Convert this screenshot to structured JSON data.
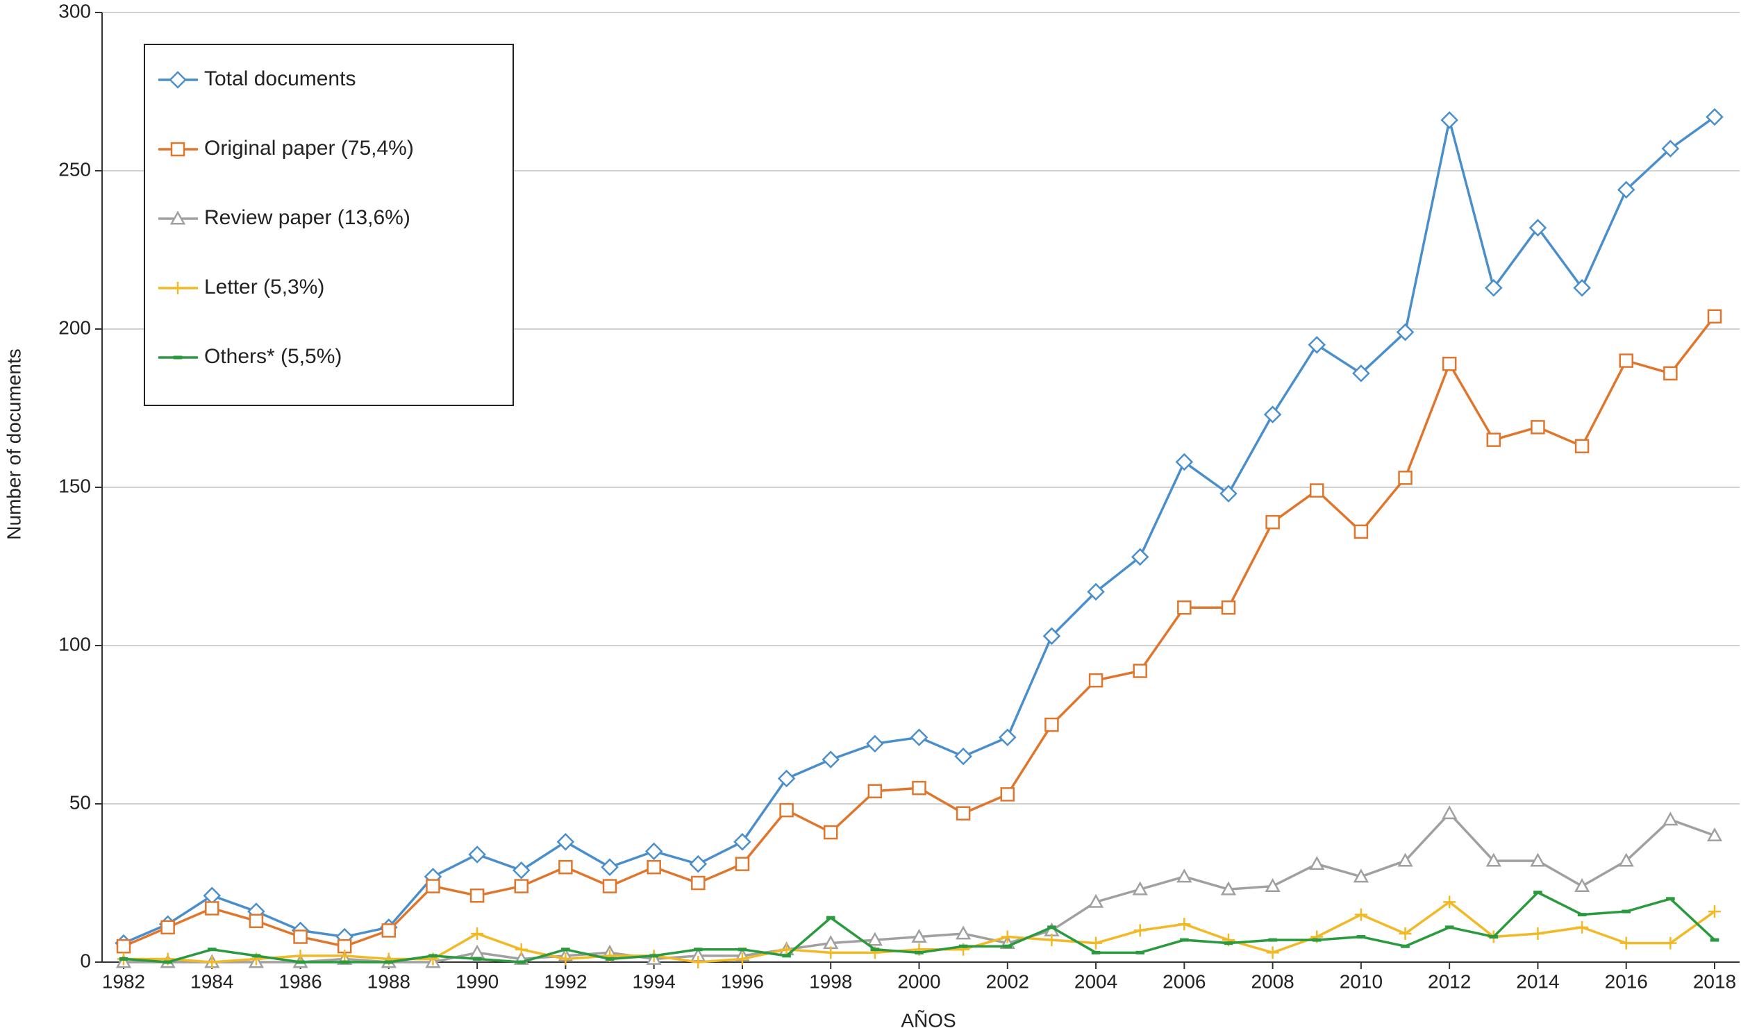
{
  "chart_data": {
    "type": "line",
    "x_label": "AÑOS",
    "y_label": "Number of documents",
    "x": [
      1982,
      1983,
      1984,
      1985,
      1986,
      1987,
      1988,
      1989,
      1990,
      1991,
      1992,
      1993,
      1994,
      1995,
      1996,
      1997,
      1998,
      1999,
      2000,
      2001,
      2002,
      2003,
      2004,
      2005,
      2006,
      2007,
      2008,
      2009,
      2010,
      2011,
      2012,
      2013,
      2014,
      2015,
      2016,
      2017,
      2018
    ],
    "xlim": [
      1982,
      2018
    ],
    "xticks": [
      1982,
      1984,
      1986,
      1988,
      1990,
      1992,
      1994,
      1996,
      1998,
      2000,
      2002,
      2004,
      2006,
      2008,
      2010,
      2012,
      2014,
      2016,
      2018
    ],
    "ylim": [
      0,
      300
    ],
    "yticks": [
      0,
      50,
      100,
      150,
      200,
      250,
      300
    ],
    "grid": true,
    "legend": "upper left",
    "series": [
      {
        "name": "Total documents",
        "color": "#4a8fcb",
        "marker": "diamond",
        "values": [
          6,
          12,
          21,
          16,
          10,
          8,
          11,
          27,
          34,
          29,
          38,
          30,
          35,
          31,
          38,
          58,
          64,
          69,
          71,
          65,
          71,
          103,
          117,
          128,
          158,
          148,
          173,
          195,
          186,
          199,
          266,
          213,
          232,
          213,
          244,
          257,
          267
        ]
      },
      {
        "name": "Original paper (75,4%)",
        "color": "#e0762c",
        "marker": "square",
        "values": [
          5,
          11,
          17,
          13,
          8,
          5,
          10,
          24,
          21,
          24,
          30,
          24,
          30,
          25,
          31,
          48,
          41,
          54,
          55,
          47,
          53,
          75,
          89,
          92,
          112,
          112,
          139,
          149,
          136,
          153,
          189,
          165,
          169,
          163,
          190,
          186,
          204
        ]
      },
      {
        "name": "Review paper (13,6%)",
        "color": "#a0a0a0",
        "marker": "triangle",
        "values": [
          0,
          0,
          0,
          0,
          0,
          1,
          0,
          0,
          3,
          1,
          2,
          3,
          1,
          2,
          2,
          4,
          6,
          7,
          8,
          9,
          6,
          10,
          19,
          23,
          27,
          23,
          24,
          31,
          27,
          32,
          47,
          32,
          32,
          24,
          32,
          45,
          40
        ]
      },
      {
        "name": "Letter (5,3%)",
        "color": "#f2b926",
        "marker": "plus",
        "values": [
          1,
          1,
          0,
          1,
          2,
          2,
          1,
          1,
          9,
          4,
          1,
          2,
          2,
          0,
          1,
          4,
          3,
          3,
          4,
          4,
          8,
          7,
          6,
          10,
          12,
          7,
          3,
          8,
          15,
          9,
          19,
          8,
          9,
          11,
          6,
          6,
          16
        ]
      },
      {
        "name": "Others* (5,5%)",
        "color": "#2a9a3e",
        "marker": "dash",
        "values": [
          1,
          0,
          4,
          2,
          0,
          0,
          0,
          2,
          1,
          0,
          4,
          1,
          2,
          4,
          4,
          2,
          14,
          4,
          3,
          5,
          5,
          11,
          3,
          3,
          7,
          6,
          7,
          7,
          8,
          5,
          11,
          8,
          22,
          15,
          16,
          20,
          7
        ]
      }
    ]
  }
}
